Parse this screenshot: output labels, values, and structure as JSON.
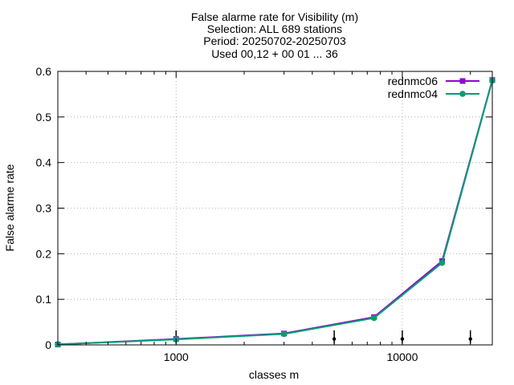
{
  "chart_data": {
    "type": "line",
    "title_lines": [
      "False alarme rate  for Visibility (m)",
      "Selection: ALL    689 stations",
      "Period: 20250702-20250703",
      "Used 00,12 + 00 01 ... 36"
    ],
    "xlabel": "classes m",
    "ylabel": "False alarme rate",
    "x_scale": "log",
    "xlim": [
      300,
      25000
    ],
    "ylim": [
      0,
      0.6
    ],
    "x_ticks": [
      1000,
      10000
    ],
    "x_tick_labels": [
      "1000",
      "10000"
    ],
    "y_ticks": [
      0,
      0.1,
      0.2,
      0.3,
      0.4,
      0.5,
      0.6
    ],
    "y_tick_labels": [
      "0",
      "0.1",
      "0.2",
      "0.3",
      "0.4",
      "0.5",
      "0.6"
    ],
    "grid": true,
    "legend_position": "top-right",
    "series": [
      {
        "name": "rednmc06",
        "color": "#9400d3",
        "marker": "square",
        "x": [
          300,
          1000,
          3000,
          7500,
          15000,
          25000
        ],
        "y": [
          0.001,
          0.013,
          0.025,
          0.061,
          0.184,
          0.581
        ]
      },
      {
        "name": "rednmc04",
        "color": "#009e73",
        "marker": "circle",
        "x": [
          300,
          1000,
          3000,
          7500,
          15000,
          25000
        ],
        "y": [
          0.001,
          0.012,
          0.024,
          0.059,
          0.18,
          0.58
        ]
      }
    ],
    "errorbars": {
      "color": "#000000",
      "x": [
        1000,
        5000,
        10000,
        20000
      ],
      "y": [
        0.013,
        0.013,
        0.013,
        0.013
      ],
      "low": [
        0.003,
        0.003,
        0.003,
        0.003
      ],
      "high": [
        0.032,
        0.032,
        0.032,
        0.032
      ]
    }
  }
}
